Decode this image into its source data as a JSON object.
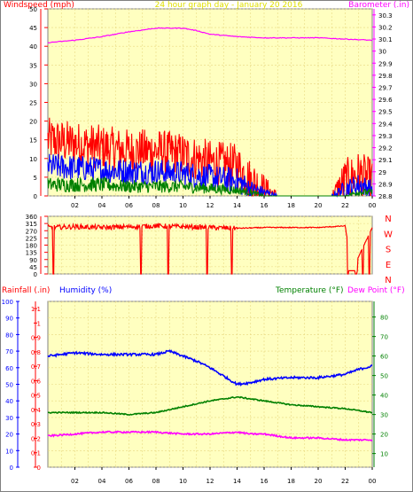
{
  "top_labels": {
    "left": "Windspeed (mph)",
    "center": "24 hour graph day - January 20 2016",
    "right": "Barometer (.in)"
  },
  "mid_labels": {
    "left": "Rainfall (.in)",
    "humidity": "Humidity (%)",
    "temperature": "Temperature (°F)",
    "dewpoint": "Dew Point (°F)"
  },
  "colors": {
    "panel_bg": "#ffffc0",
    "grid": "#e8d880",
    "wind_gust": "#ff0000",
    "wind_avg": "#0000ff",
    "wind_low": "#008000",
    "barometer": "#ff00ff",
    "direction": "#ff0000",
    "humidity": "#0000ff",
    "temperature": "#008000",
    "dewpoint": "#ff00ff",
    "rain_axis": "#ff0000",
    "hum_axis": "#0000ff",
    "temp_axis": "#008000"
  },
  "chart_data": [
    {
      "type": "line",
      "x_ticks": [
        "02",
        "04",
        "06",
        "08",
        "10",
        "12",
        "14",
        "16",
        "18",
        "20",
        "22",
        "00"
      ],
      "y_left": {
        "label": "Windspeed (mph)",
        "ticks": [
          "0",
          "5",
          "10",
          "15",
          "20",
          "25",
          "30",
          "35",
          "40",
          "45",
          "50"
        ],
        "range": [
          0,
          50
        ]
      },
      "y_right": {
        "label": "Barometer (.in)",
        "ticks": [
          "28.8",
          "28.9",
          "29",
          "29.1",
          "29.2",
          "29.3",
          "29.4",
          "29.5",
          "29.6",
          "29.7",
          "29.8",
          "29.9",
          "30",
          "30.1",
          "30.2",
          "30.3"
        ],
        "range": [
          28.8,
          30.35
        ]
      },
      "grid": true,
      "series": [
        {
          "kind": "wind_gust",
          "hours": [
            0,
            2,
            4,
            6,
            8,
            10,
            12,
            14,
            15,
            16,
            17,
            20,
            21,
            22,
            23,
            24
          ],
          "values": [
            15,
            14,
            13,
            12,
            12,
            11,
            9,
            8,
            4,
            2,
            0,
            0,
            0,
            4,
            6,
            4
          ]
        },
        {
          "kind": "wind_avg",
          "hours": [
            0,
            2,
            4,
            6,
            8,
            10,
            12,
            14,
            15,
            16,
            17,
            21,
            22,
            23,
            24
          ],
          "values": [
            8,
            7.5,
            7,
            6.5,
            6.5,
            6,
            5,
            4,
            2,
            1,
            0,
            0,
            2,
            3,
            2
          ]
        },
        {
          "kind": "wind_low",
          "hours": [
            0,
            2,
            4,
            6,
            8,
            10,
            12,
            14,
            15,
            16,
            22,
            23,
            24
          ],
          "values": [
            3,
            3,
            3,
            2.5,
            2.5,
            2.5,
            2,
            1.5,
            1,
            0,
            0,
            1,
            1
          ]
        },
        {
          "kind": "barometer",
          "hours": [
            0,
            2,
            4,
            6,
            8,
            9,
            10,
            11,
            12,
            14,
            16,
            18,
            20,
            22,
            24
          ],
          "values": [
            30.07,
            30.09,
            30.12,
            30.16,
            30.19,
            30.19,
            30.19,
            30.17,
            30.14,
            30.12,
            30.11,
            30.11,
            30.11,
            30.1,
            30.09
          ]
        }
      ]
    },
    {
      "type": "line",
      "y_left": {
        "ticks": [
          "360",
          "315",
          "270",
          "225",
          "180",
          "135",
          "90",
          "45",
          "0"
        ],
        "range": [
          0,
          360
        ]
      },
      "y_right": {
        "ticks": [
          "N",
          "W",
          "S",
          "E",
          "N"
        ]
      },
      "grid": true,
      "series": [
        {
          "kind": "direction",
          "hours": [
            0,
            2,
            4,
            6,
            8,
            10,
            12,
            14,
            16,
            20,
            22,
            22.5,
            24
          ],
          "values": [
            290,
            295,
            290,
            295,
            300,
            295,
            290,
            285,
            290,
            290,
            300,
            20,
            290
          ],
          "drops_to_zero_at": [
            0.4,
            6.9,
            8.9,
            11.8,
            13.6,
            22.2,
            22.8,
            23.3,
            23.8
          ]
        }
      ]
    },
    {
      "type": "line",
      "x_ticks": [
        "02",
        "04",
        "06",
        "08",
        "10",
        "12",
        "14",
        "16",
        "18",
        "20",
        "22",
        "00"
      ],
      "y_rain": {
        "label": "Rainfall (.in)",
        "ticks": [
          "0",
          "0.1",
          "0.2",
          "0.3",
          "0.4",
          "0.5",
          "0.6",
          "0.7",
          "0.8",
          "0.9",
          "1",
          "1.1"
        ],
        "range": [
          0,
          1.15
        ]
      },
      "y_humidity": {
        "label": "Humidity (%)",
        "ticks": [
          "0",
          "10",
          "20",
          "30",
          "40",
          "50",
          "60",
          "70",
          "80",
          "90",
          "100"
        ],
        "range": [
          0,
          100
        ]
      },
      "y_temp": {
        "label": "Temperature (°F)",
        "ticks": [
          "10",
          "20",
          "30",
          "40",
          "50",
          "60",
          "70",
          "80"
        ],
        "range": [
          3,
          88
        ]
      },
      "grid": true,
      "series": [
        {
          "kind": "humidity",
          "hours": [
            0,
            2,
            4,
            6,
            8,
            9,
            10,
            11,
            12,
            13,
            14,
            15,
            16,
            18,
            20,
            22,
            23,
            24
          ],
          "values": [
            67,
            69,
            68,
            68,
            68,
            70,
            67,
            64,
            60,
            55,
            50,
            51,
            53,
            54,
            54,
            56,
            59,
            61
          ]
        },
        {
          "kind": "temperature",
          "hours": [
            0,
            2,
            4,
            6,
            8,
            10,
            12,
            13,
            14,
            15,
            16,
            18,
            20,
            22,
            24
          ],
          "values": [
            31,
            31,
            31,
            30,
            31,
            34,
            37,
            38,
            39,
            38,
            37,
            35,
            34,
            33,
            31
          ]
        },
        {
          "kind": "dewpoint",
          "hours": [
            0,
            2,
            4,
            6,
            8,
            10,
            12,
            14,
            15,
            16,
            18,
            20,
            22,
            24
          ],
          "values": [
            19,
            20,
            21,
            21,
            21,
            20,
            20,
            21,
            20,
            20,
            18,
            18,
            17,
            17
          ]
        }
      ]
    }
  ]
}
